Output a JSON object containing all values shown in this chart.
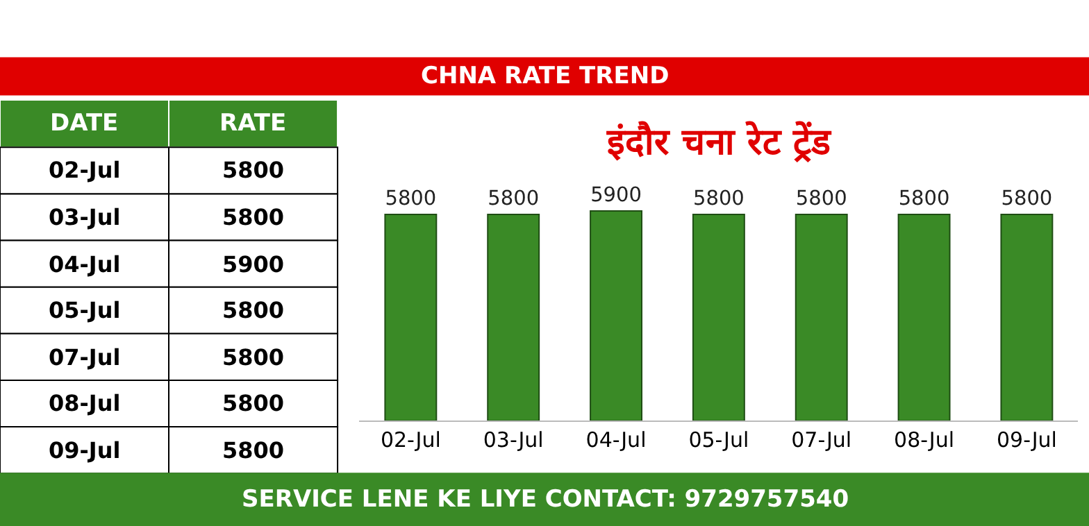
{
  "chart_data": [
    {
      "type": "other",
      "annotations": [
        "DATE",
        "RATE",
        "02-Jul",
        "5800",
        "03-Jul",
        "5800",
        "04-Jul",
        "5900",
        "05-Jul",
        "5800",
        "07-Jul",
        "5800",
        "08-Jul",
        "5800",
        "09-Jul",
        "5800"
      ]
    },
    {
      "type": "bar",
      "title": "CHNA RATE TREND",
      "subtitle": "इंदौर चना रेट ट्रेंड",
      "categories": [
        "02-Jul",
        "03-Jul",
        "04-Jul",
        "05-Jul",
        "07-Jul",
        "08-Jul",
        "09-Jul"
      ],
      "values": [
        5800,
        5800,
        5900,
        5800,
        5800,
        5800,
        5800
      ],
      "color": "#3a8a26",
      "data_labels": true,
      "annotations": [
        "SERVICE LENE KE LIYE CONTACT: 9729757540"
      ]
    }
  ]
}
